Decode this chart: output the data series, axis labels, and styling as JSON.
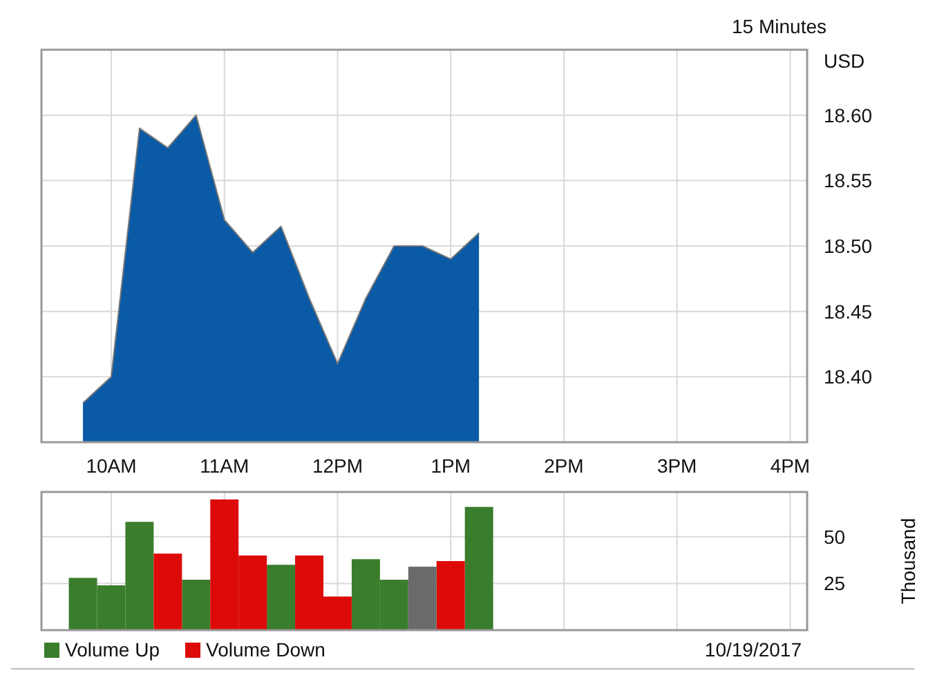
{
  "chart_data": [
    {
      "type": "area",
      "subtitle": "15 Minutes",
      "ylabel": "USD",
      "x": [
        "2017-10-19T09:45",
        "2017-10-19T10:00",
        "2017-10-19T10:15",
        "2017-10-19T10:30",
        "2017-10-19T10:45",
        "2017-10-19T11:00",
        "2017-10-19T11:15",
        "2017-10-19T11:30",
        "2017-10-19T11:45",
        "2017-10-19T12:00",
        "2017-10-19T12:15",
        "2017-10-19T12:30",
        "2017-10-19T12:45",
        "2017-10-19T13:00",
        "2017-10-19T13:15"
      ],
      "series": [
        {
          "color": "#0a5aa6",
          "values": [
            18.38,
            18.4,
            18.59,
            18.575,
            18.6,
            18.52,
            18.495,
            18.515,
            18.46,
            18.41,
            18.46,
            18.5,
            18.5,
            18.49,
            18.51
          ]
        }
      ],
      "xlim": [
        "2017-10-19T09:23",
        "2017-10-19T16:09"
      ],
      "xticks": [
        {
          "value": "2017-10-19T10:00",
          "label": "10AM"
        },
        {
          "value": "2017-10-19T11:00",
          "label": "11AM"
        },
        {
          "value": "2017-10-19T12:00",
          "label": "12PM"
        },
        {
          "value": "2017-10-19T13:00",
          "label": "1PM"
        },
        {
          "value": "2017-10-19T14:00",
          "label": "2PM"
        },
        {
          "value": "2017-10-19T15:00",
          "label": "3PM"
        },
        {
          "value": "2017-10-19T16:00",
          "label": "4PM"
        }
      ],
      "ylim": [
        18.35,
        18.65
      ],
      "yticks": [
        {
          "value": 18.4,
          "label": "18.40"
        },
        {
          "value": 18.45,
          "label": "18.45"
        },
        {
          "value": 18.5,
          "label": "18.50"
        },
        {
          "value": 18.55,
          "label": "18.55"
        },
        {
          "value": 18.6,
          "label": "18.60"
        }
      ],
      "grid": true,
      "legend": false
    },
    {
      "type": "bar",
      "ylabel": "Thousand",
      "annotations": [
        "10/19/2017"
      ],
      "x": [
        "2017-10-19T09:45",
        "2017-10-19T10:00",
        "2017-10-19T10:15",
        "2017-10-19T10:30",
        "2017-10-19T10:45",
        "2017-10-19T11:00",
        "2017-10-19T11:15",
        "2017-10-19T11:30",
        "2017-10-19T11:45",
        "2017-10-19T12:00",
        "2017-10-19T12:15",
        "2017-10-19T12:30",
        "2017-10-19T12:45",
        "2017-10-19T13:00",
        "2017-10-19T13:15"
      ],
      "series": [
        {
          "name": "Volume Up",
          "color": "#3a7d2c",
          "values": [
            28,
            24,
            58,
            null,
            27,
            null,
            null,
            35,
            null,
            null,
            38,
            27,
            null,
            null,
            66
          ]
        },
        {
          "name": "Volume Down",
          "color": "#dd0a0a",
          "values": [
            null,
            null,
            null,
            41,
            null,
            70,
            40,
            null,
            40,
            18,
            null,
            null,
            null,
            37,
            null
          ]
        },
        {
          "color": "#6b6b6b",
          "values": [
            null,
            null,
            null,
            null,
            null,
            null,
            null,
            null,
            null,
            null,
            null,
            null,
            34,
            null,
            null
          ]
        }
      ],
      "xlim": [
        "2017-10-19T09:23",
        "2017-10-19T16:09"
      ],
      "xticks": [
        "2017-10-19T10:00",
        "2017-10-19T11:00",
        "2017-10-19T12:00",
        "2017-10-19T13:00",
        "2017-10-19T14:00",
        "2017-10-19T15:00",
        "2017-10-19T16:00"
      ],
      "tick_labels": "y",
      "ylim": [
        0,
        74
      ],
      "yticks": [
        25,
        50
      ],
      "grid": true,
      "legend": "bottom left"
    }
  ]
}
